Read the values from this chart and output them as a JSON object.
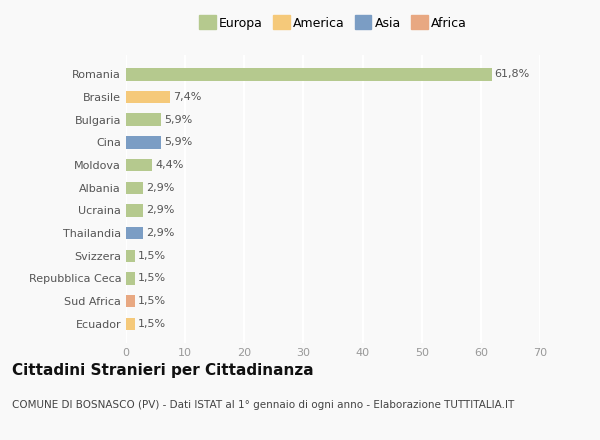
{
  "categories": [
    "Romania",
    "Brasile",
    "Bulgaria",
    "Cina",
    "Moldova",
    "Albania",
    "Ucraina",
    "Thailandia",
    "Svizzera",
    "Repubblica Ceca",
    "Sud Africa",
    "Ecuador"
  ],
  "values": [
    61.8,
    7.4,
    5.9,
    5.9,
    4.4,
    2.9,
    2.9,
    2.9,
    1.5,
    1.5,
    1.5,
    1.5
  ],
  "labels": [
    "61,8%",
    "7,4%",
    "5,9%",
    "5,9%",
    "4,4%",
    "2,9%",
    "2,9%",
    "2,9%",
    "1,5%",
    "1,5%",
    "1,5%",
    "1,5%"
  ],
  "colors": [
    "#b5c98e",
    "#f5c97a",
    "#b5c98e",
    "#7b9dc4",
    "#b5c98e",
    "#b5c98e",
    "#b5c98e",
    "#7b9dc4",
    "#b5c98e",
    "#b5c98e",
    "#e8a882",
    "#f5c97a"
  ],
  "legend": [
    {
      "label": "Europa",
      "color": "#b5c98e"
    },
    {
      "label": "America",
      "color": "#f5c97a"
    },
    {
      "label": "Asia",
      "color": "#7b9dc4"
    },
    {
      "label": "Africa",
      "color": "#e8a882"
    }
  ],
  "xlim": [
    0,
    70
  ],
  "xticks": [
    0,
    10,
    20,
    30,
    40,
    50,
    60,
    70
  ],
  "title": "Cittadini Stranieri per Cittadinanza",
  "subtitle": "COMUNE DI BOSNASCO (PV) - Dati ISTAT al 1° gennaio di ogni anno - Elaborazione TUTTITALIA.IT",
  "background_color": "#f9f9f9",
  "grid_color": "#ffffff",
  "bar_height": 0.55,
  "title_fontsize": 11,
  "subtitle_fontsize": 7.5,
  "label_fontsize": 8,
  "tick_fontsize": 8,
  "legend_fontsize": 9
}
